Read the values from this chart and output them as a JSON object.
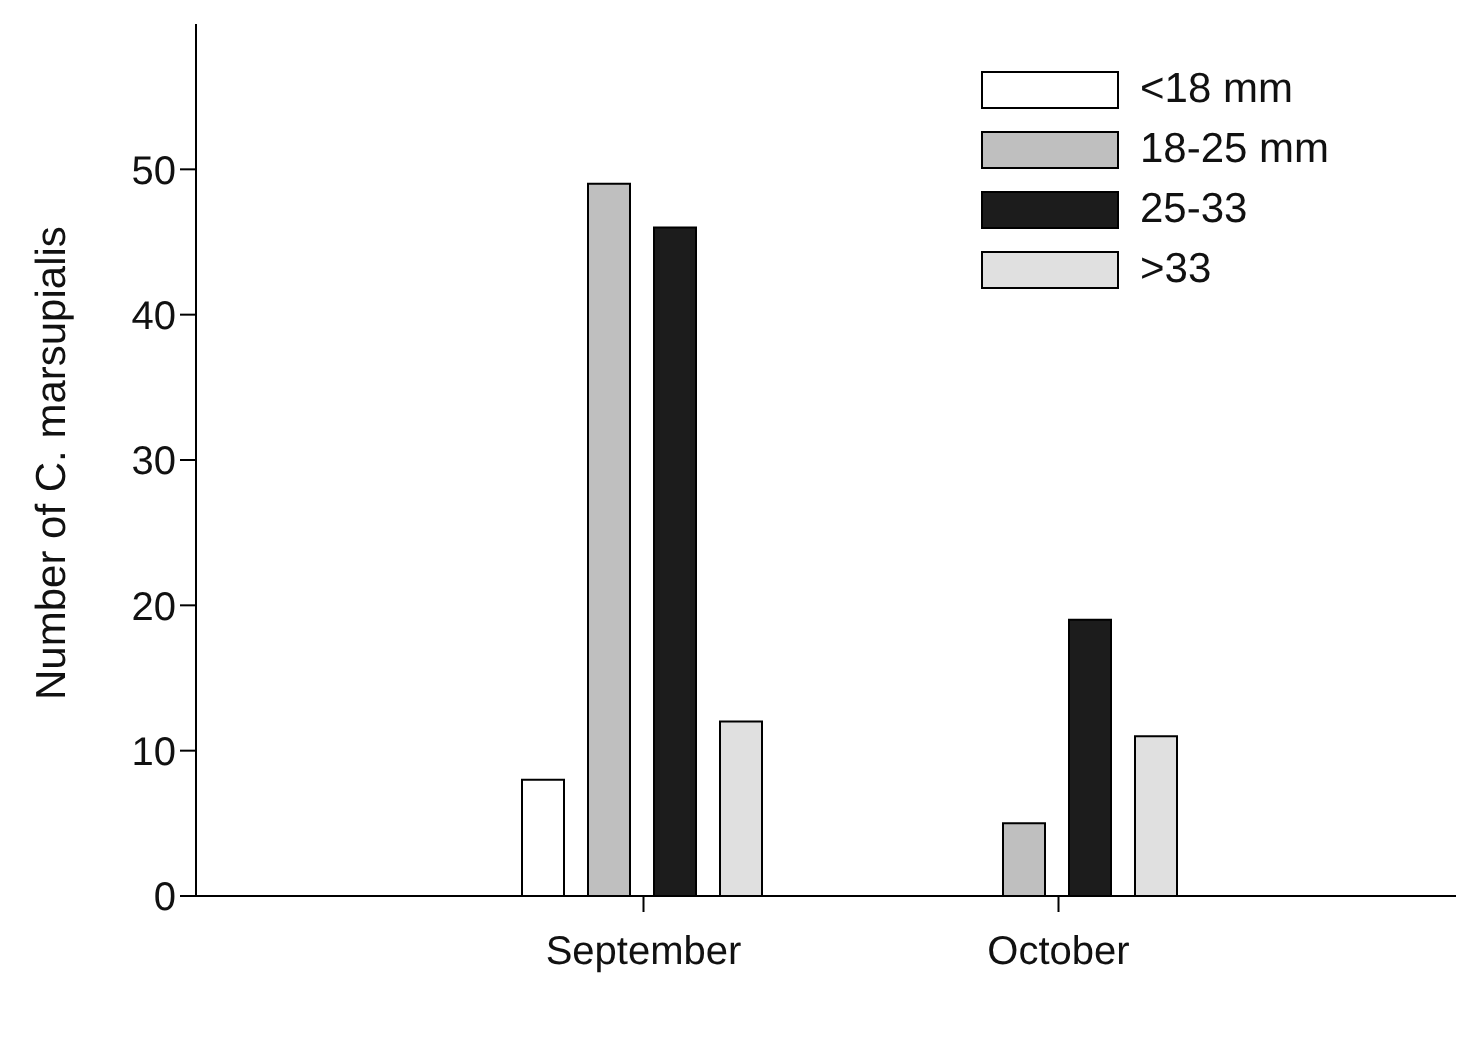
{
  "chart_data": {
    "type": "bar",
    "ylabel": "Number of C. marsupialis",
    "categories": [
      "September",
      "October"
    ],
    "series": [
      {
        "name": "<18 mm",
        "color": "#ffffff",
        "values": [
          8,
          0
        ]
      },
      {
        "name": "18-25 mm",
        "color": "#bfbfbf",
        "values": [
          49,
          5
        ]
      },
      {
        "name": "25-33",
        "color": "#1c1c1c",
        "values": [
          46,
          19
        ]
      },
      {
        "name": ">33",
        "color": "#e0e0e0",
        "values": [
          12,
          11
        ]
      }
    ],
    "ylim": [
      0,
      60
    ],
    "yticks": [
      0,
      10,
      20,
      30,
      40,
      50
    ],
    "grid": false,
    "legend": "top right"
  }
}
